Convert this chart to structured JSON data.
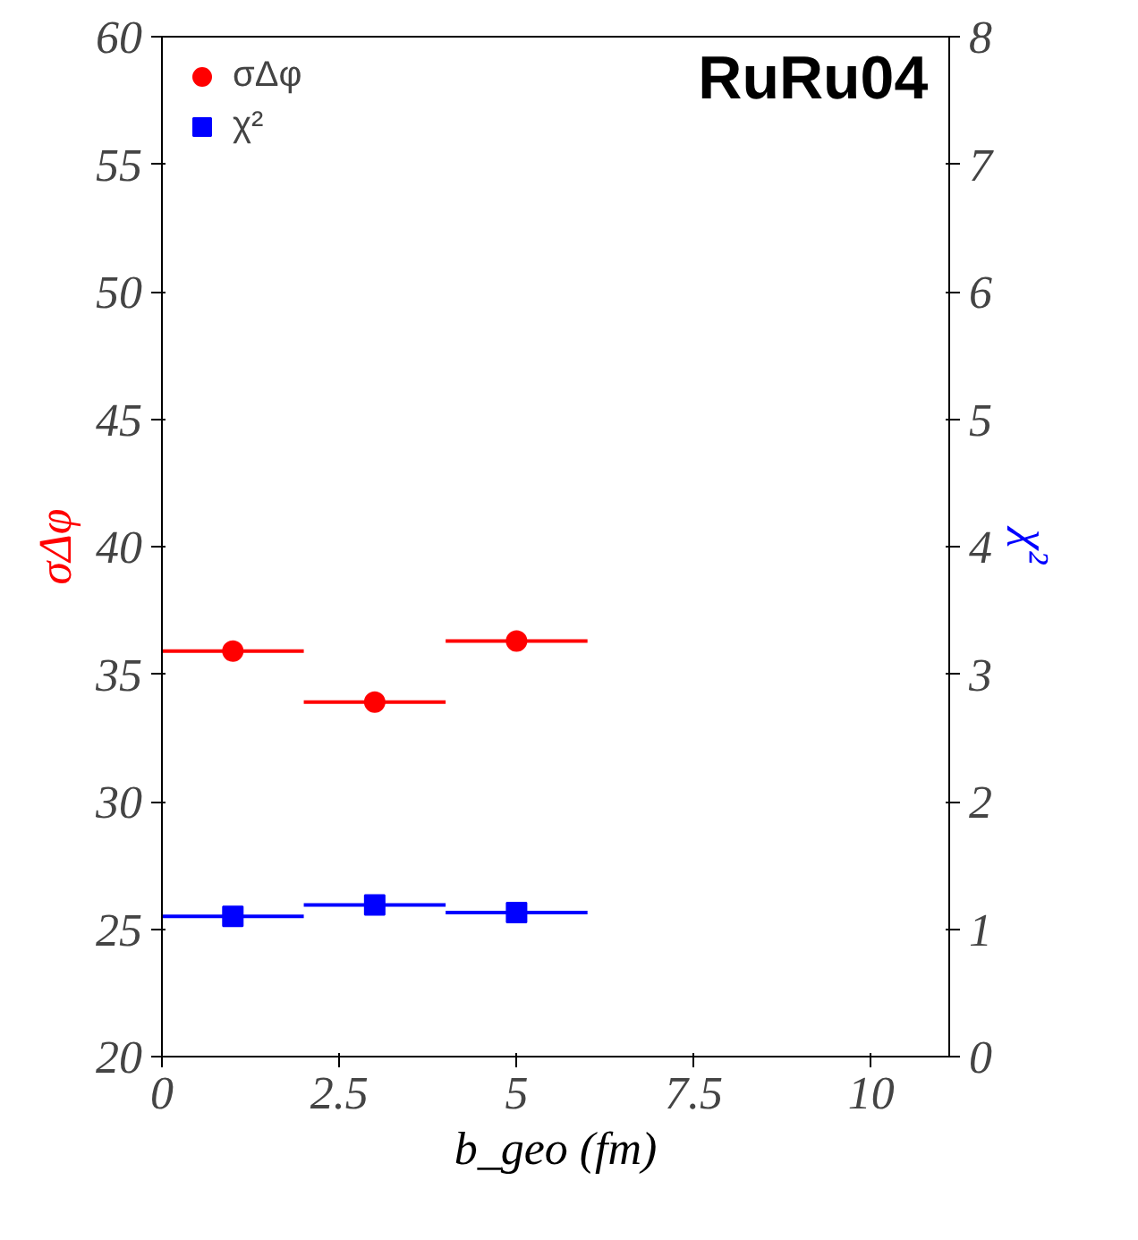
{
  "chart_data": {
    "type": "scatter",
    "title": "RuRu04",
    "xlabel": "b_geo (fm)",
    "ylabel": "σΔφ",
    "y2label": "χ²",
    "x": [
      1,
      3,
      5
    ],
    "series": [
      {
        "name": "σΔφ",
        "color": "#ff0000",
        "marker": "circle",
        "values": [
          35.9,
          33.9,
          36.3
        ],
        "xerrors": [
          1,
          1,
          1
        ]
      },
      {
        "name": "χ²",
        "color": "#0000ff",
        "marker": "square",
        "axis": "y2",
        "values": [
          1.1,
          1.19,
          1.13
        ],
        "xerrors": [
          1,
          1,
          1
        ]
      }
    ],
    "xlim": [
      0,
      11.1
    ],
    "xticks": [
      0,
      2.5,
      5,
      7.5,
      10
    ],
    "ylim": [
      20,
      60
    ],
    "yticks": [
      20,
      25,
      30,
      35,
      40,
      45,
      50,
      55,
      60
    ],
    "y2lim": [
      0,
      8
    ],
    "y2ticks": [
      0,
      1,
      2,
      3,
      4,
      5,
      6,
      7,
      8
    ],
    "grid": false,
    "legend": "top left"
  }
}
